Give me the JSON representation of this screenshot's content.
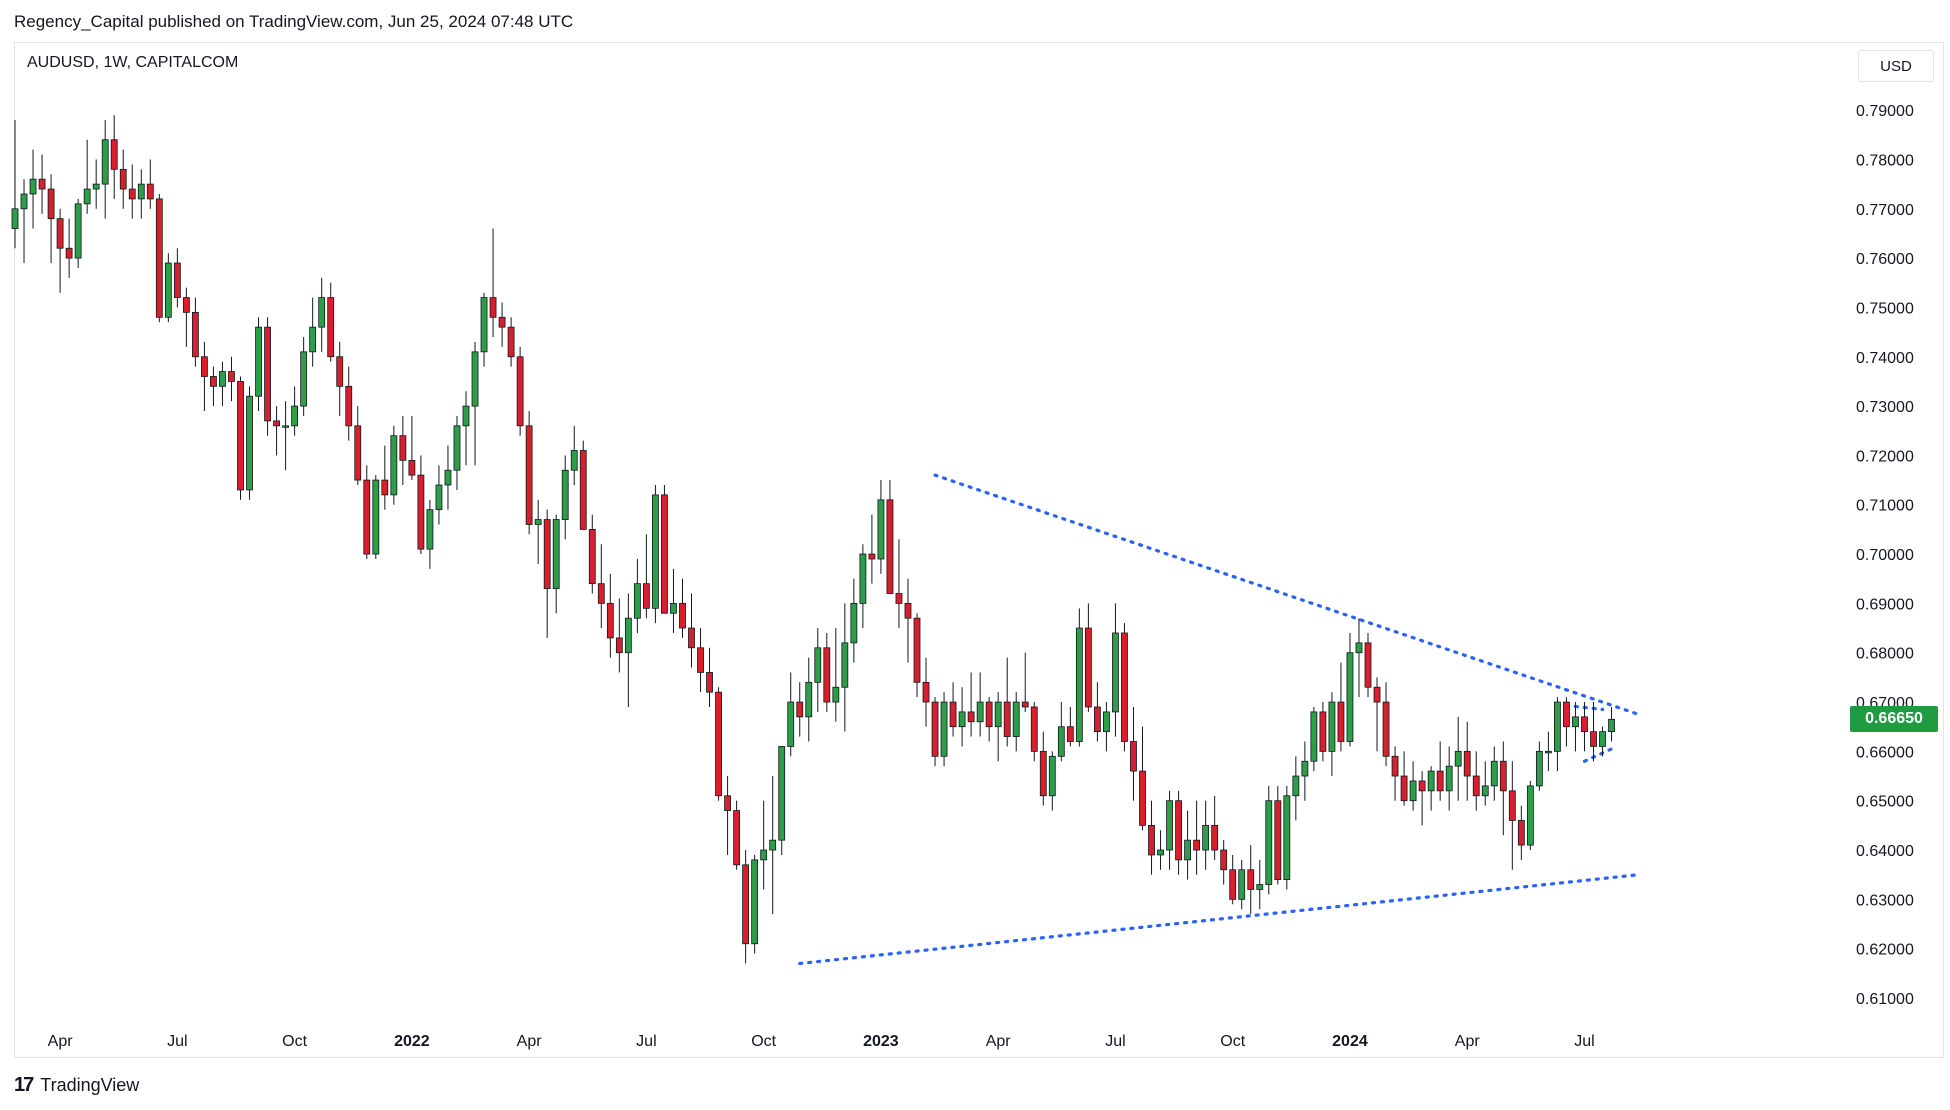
{
  "header": {
    "published": "Regency_Capital published on TradingView.com, Jun 25, 2024 07:48 UTC"
  },
  "symbol_label": "AUDUSD, 1W, CAPITALCOM",
  "currency_button": "USD",
  "footer": {
    "logo_mark": "17",
    "brand": "TradingView"
  },
  "colors": {
    "up": "#2e9d47",
    "down": "#d7202c",
    "trendline": "#2962ff",
    "price_tag": "#1e9c3f"
  },
  "chart_data": {
    "type": "candlestick",
    "title": "AUDUSD, 1W, CAPITALCOM",
    "ylim": [
      0.6025,
      0.7955
    ],
    "y_ticks": [
      "0.79000",
      "0.78000",
      "0.77000",
      "0.76000",
      "0.75000",
      "0.74000",
      "0.73000",
      "0.72000",
      "0.71000",
      "0.70000",
      "0.69000",
      "0.68000",
      "0.67000",
      "0.66000",
      "0.65000",
      "0.64000",
      "0.63000",
      "0.62000",
      "0.61000"
    ],
    "x_labels": [
      {
        "label": "Apr",
        "week": 5,
        "bold": false
      },
      {
        "label": "Jul",
        "week": 18,
        "bold": false
      },
      {
        "label": "Oct",
        "week": 31,
        "bold": false
      },
      {
        "label": "2022",
        "week": 44,
        "bold": true
      },
      {
        "label": "Apr",
        "week": 57,
        "bold": false
      },
      {
        "label": "Jul",
        "week": 70,
        "bold": false
      },
      {
        "label": "Oct",
        "week": 83,
        "bold": false
      },
      {
        "label": "2023",
        "week": 96,
        "bold": true
      },
      {
        "label": "Apr",
        "week": 109,
        "bold": false
      },
      {
        "label": "Jul",
        "week": 122,
        "bold": false
      },
      {
        "label": "Oct",
        "week": 135,
        "bold": false
      },
      {
        "label": "2024",
        "week": 148,
        "bold": true
      },
      {
        "label": "Apr",
        "week": 161,
        "bold": false
      },
      {
        "label": "Jul",
        "week": 174,
        "bold": false
      }
    ],
    "last_price": "0.66650",
    "ohlc": [
      [
        0.766,
        0.788,
        0.762,
        0.77
      ],
      [
        0.77,
        0.776,
        0.759,
        0.773
      ],
      [
        0.773,
        0.782,
        0.766,
        0.776
      ],
      [
        0.776,
        0.781,
        0.769,
        0.774
      ],
      [
        0.774,
        0.777,
        0.759,
        0.768
      ],
      [
        0.768,
        0.77,
        0.753,
        0.762
      ],
      [
        0.762,
        0.768,
        0.756,
        0.76
      ],
      [
        0.76,
        0.772,
        0.758,
        0.771
      ],
      [
        0.771,
        0.784,
        0.769,
        0.774
      ],
      [
        0.774,
        0.78,
        0.77,
        0.775
      ],
      [
        0.775,
        0.788,
        0.768,
        0.784
      ],
      [
        0.784,
        0.789,
        0.772,
        0.778
      ],
      [
        0.778,
        0.782,
        0.77,
        0.774
      ],
      [
        0.774,
        0.779,
        0.768,
        0.772
      ],
      [
        0.772,
        0.778,
        0.768,
        0.775
      ],
      [
        0.775,
        0.78,
        0.77,
        0.772
      ],
      [
        0.772,
        0.773,
        0.747,
        0.748
      ],
      [
        0.748,
        0.761,
        0.747,
        0.759
      ],
      [
        0.759,
        0.762,
        0.75,
        0.752
      ],
      [
        0.752,
        0.754,
        0.742,
        0.749
      ],
      [
        0.749,
        0.752,
        0.738,
        0.74
      ],
      [
        0.74,
        0.743,
        0.729,
        0.736
      ],
      [
        0.736,
        0.738,
        0.73,
        0.734
      ],
      [
        0.734,
        0.739,
        0.73,
        0.737
      ],
      [
        0.737,
        0.74,
        0.731,
        0.735
      ],
      [
        0.735,
        0.736,
        0.711,
        0.713
      ],
      [
        0.713,
        0.734,
        0.711,
        0.732
      ],
      [
        0.732,
        0.748,
        0.729,
        0.746
      ],
      [
        0.746,
        0.748,
        0.724,
        0.727
      ],
      [
        0.727,
        0.73,
        0.72,
        0.726
      ],
      [
        0.726,
        0.731,
        0.717,
        0.726
      ],
      [
        0.726,
        0.734,
        0.724,
        0.73
      ],
      [
        0.73,
        0.744,
        0.728,
        0.741
      ],
      [
        0.741,
        0.752,
        0.738,
        0.746
      ],
      [
        0.746,
        0.756,
        0.741,
        0.752
      ],
      [
        0.752,
        0.755,
        0.739,
        0.74
      ],
      [
        0.74,
        0.743,
        0.728,
        0.734
      ],
      [
        0.734,
        0.738,
        0.723,
        0.726
      ],
      [
        0.726,
        0.73,
        0.714,
        0.715
      ],
      [
        0.715,
        0.718,
        0.699,
        0.7
      ],
      [
        0.7,
        0.716,
        0.699,
        0.715
      ],
      [
        0.715,
        0.722,
        0.709,
        0.712
      ],
      [
        0.712,
        0.726,
        0.71,
        0.724
      ],
      [
        0.724,
        0.728,
        0.714,
        0.719
      ],
      [
        0.719,
        0.728,
        0.715,
        0.716
      ],
      [
        0.716,
        0.72,
        0.7,
        0.701
      ],
      [
        0.701,
        0.711,
        0.697,
        0.709
      ],
      [
        0.709,
        0.718,
        0.706,
        0.714
      ],
      [
        0.714,
        0.722,
        0.709,
        0.717
      ],
      [
        0.717,
        0.728,
        0.713,
        0.726
      ],
      [
        0.726,
        0.733,
        0.718,
        0.73
      ],
      [
        0.73,
        0.743,
        0.718,
        0.741
      ],
      [
        0.741,
        0.753,
        0.738,
        0.752
      ],
      [
        0.752,
        0.766,
        0.744,
        0.748
      ],
      [
        0.748,
        0.751,
        0.742,
        0.746
      ],
      [
        0.746,
        0.748,
        0.738,
        0.74
      ],
      [
        0.74,
        0.742,
        0.724,
        0.726
      ],
      [
        0.726,
        0.729,
        0.704,
        0.706
      ],
      [
        0.706,
        0.711,
        0.698,
        0.707
      ],
      [
        0.707,
        0.709,
        0.683,
        0.693
      ],
      [
        0.693,
        0.708,
        0.688,
        0.707
      ],
      [
        0.707,
        0.72,
        0.703,
        0.717
      ],
      [
        0.717,
        0.726,
        0.714,
        0.721
      ],
      [
        0.721,
        0.723,
        0.705,
        0.705
      ],
      [
        0.705,
        0.708,
        0.692,
        0.694
      ],
      [
        0.694,
        0.702,
        0.685,
        0.69
      ],
      [
        0.69,
        0.696,
        0.679,
        0.683
      ],
      [
        0.683,
        0.691,
        0.676,
        0.68
      ],
      [
        0.68,
        0.692,
        0.669,
        0.687
      ],
      [
        0.687,
        0.699,
        0.684,
        0.694
      ],
      [
        0.694,
        0.704,
        0.687,
        0.689
      ],
      [
        0.689,
        0.714,
        0.686,
        0.712
      ],
      [
        0.712,
        0.714,
        0.688,
        0.688
      ],
      [
        0.688,
        0.697,
        0.684,
        0.69
      ],
      [
        0.69,
        0.695,
        0.683,
        0.685
      ],
      [
        0.685,
        0.692,
        0.677,
        0.681
      ],
      [
        0.681,
        0.685,
        0.672,
        0.676
      ],
      [
        0.676,
        0.681,
        0.669,
        0.672
      ],
      [
        0.672,
        0.673,
        0.65,
        0.651
      ],
      [
        0.651,
        0.655,
        0.639,
        0.648
      ],
      [
        0.648,
        0.65,
        0.636,
        0.637
      ],
      [
        0.637,
        0.64,
        0.617,
        0.621
      ],
      [
        0.621,
        0.639,
        0.619,
        0.638
      ],
      [
        0.638,
        0.65,
        0.632,
        0.64
      ],
      [
        0.64,
        0.655,
        0.627,
        0.642
      ],
      [
        0.642,
        0.661,
        0.639,
        0.661
      ],
      [
        0.661,
        0.676,
        0.659,
        0.67
      ],
      [
        0.67,
        0.674,
        0.663,
        0.667
      ],
      [
        0.667,
        0.679,
        0.662,
        0.674
      ],
      [
        0.674,
        0.685,
        0.668,
        0.681
      ],
      [
        0.681,
        0.684,
        0.668,
        0.67
      ],
      [
        0.67,
        0.685,
        0.666,
        0.673
      ],
      [
        0.673,
        0.69,
        0.664,
        0.682
      ],
      [
        0.682,
        0.695,
        0.678,
        0.69
      ],
      [
        0.69,
        0.702,
        0.685,
        0.7
      ],
      [
        0.7,
        0.708,
        0.694,
        0.699
      ],
      [
        0.699,
        0.715,
        0.696,
        0.711
      ],
      [
        0.711,
        0.715,
        0.692,
        0.692
      ],
      [
        0.692,
        0.703,
        0.685,
        0.69
      ],
      [
        0.69,
        0.695,
        0.678,
        0.687
      ],
      [
        0.687,
        0.688,
        0.671,
        0.674
      ],
      [
        0.674,
        0.679,
        0.665,
        0.67
      ],
      [
        0.67,
        0.671,
        0.657,
        0.659
      ],
      [
        0.659,
        0.672,
        0.657,
        0.67
      ],
      [
        0.67,
        0.674,
        0.663,
        0.665
      ],
      [
        0.665,
        0.673,
        0.661,
        0.668
      ],
      [
        0.668,
        0.676,
        0.663,
        0.666
      ],
      [
        0.666,
        0.676,
        0.663,
        0.67
      ],
      [
        0.67,
        0.671,
        0.662,
        0.665
      ],
      [
        0.665,
        0.672,
        0.658,
        0.67
      ],
      [
        0.67,
        0.679,
        0.661,
        0.663
      ],
      [
        0.663,
        0.672,
        0.66,
        0.67
      ],
      [
        0.67,
        0.68,
        0.668,
        0.669
      ],
      [
        0.669,
        0.67,
        0.658,
        0.66
      ],
      [
        0.66,
        0.664,
        0.649,
        0.651
      ],
      [
        0.651,
        0.66,
        0.648,
        0.659
      ],
      [
        0.659,
        0.67,
        0.658,
        0.665
      ],
      [
        0.665,
        0.669,
        0.661,
        0.662
      ],
      [
        0.662,
        0.689,
        0.661,
        0.685
      ],
      [
        0.685,
        0.69,
        0.668,
        0.669
      ],
      [
        0.669,
        0.674,
        0.662,
        0.664
      ],
      [
        0.664,
        0.67,
        0.66,
        0.668
      ],
      [
        0.668,
        0.69,
        0.663,
        0.684
      ],
      [
        0.684,
        0.686,
        0.66,
        0.662
      ],
      [
        0.662,
        0.669,
        0.65,
        0.656
      ],
      [
        0.656,
        0.665,
        0.644,
        0.645
      ],
      [
        0.645,
        0.65,
        0.635,
        0.639
      ],
      [
        0.639,
        0.644,
        0.636,
        0.64
      ],
      [
        0.64,
        0.652,
        0.636,
        0.65
      ],
      [
        0.65,
        0.652,
        0.635,
        0.638
      ],
      [
        0.638,
        0.648,
        0.634,
        0.642
      ],
      [
        0.642,
        0.65,
        0.635,
        0.64
      ],
      [
        0.64,
        0.65,
        0.636,
        0.645
      ],
      [
        0.645,
        0.651,
        0.638,
        0.64
      ],
      [
        0.64,
        0.642,
        0.633,
        0.636
      ],
      [
        0.636,
        0.639,
        0.629,
        0.63
      ],
      [
        0.63,
        0.638,
        0.628,
        0.636
      ],
      [
        0.636,
        0.641,
        0.627,
        0.632
      ],
      [
        0.632,
        0.638,
        0.628,
        0.633
      ],
      [
        0.633,
        0.653,
        0.631,
        0.65
      ],
      [
        0.65,
        0.653,
        0.633,
        0.634
      ],
      [
        0.634,
        0.653,
        0.632,
        0.651
      ],
      [
        0.651,
        0.659,
        0.646,
        0.655
      ],
      [
        0.655,
        0.662,
        0.65,
        0.658
      ],
      [
        0.658,
        0.669,
        0.656,
        0.668
      ],
      [
        0.668,
        0.67,
        0.658,
        0.66
      ],
      [
        0.66,
        0.672,
        0.655,
        0.67
      ],
      [
        0.67,
        0.678,
        0.66,
        0.662
      ],
      [
        0.662,
        0.684,
        0.661,
        0.68
      ],
      [
        0.68,
        0.687,
        0.671,
        0.682
      ],
      [
        0.682,
        0.684,
        0.671,
        0.673
      ],
      [
        0.673,
        0.675,
        0.66,
        0.67
      ],
      [
        0.67,
        0.674,
        0.657,
        0.659
      ],
      [
        0.659,
        0.661,
        0.65,
        0.655
      ],
      [
        0.655,
        0.66,
        0.649,
        0.65
      ],
      [
        0.65,
        0.658,
        0.648,
        0.654
      ],
      [
        0.654,
        0.656,
        0.645,
        0.652
      ],
      [
        0.652,
        0.657,
        0.648,
        0.656
      ],
      [
        0.656,
        0.662,
        0.65,
        0.652
      ],
      [
        0.652,
        0.661,
        0.648,
        0.657
      ],
      [
        0.657,
        0.667,
        0.65,
        0.66
      ],
      [
        0.66,
        0.666,
        0.65,
        0.655
      ],
      [
        0.655,
        0.66,
        0.648,
        0.651
      ],
      [
        0.651,
        0.658,
        0.649,
        0.653
      ],
      [
        0.653,
        0.661,
        0.65,
        0.658
      ],
      [
        0.658,
        0.662,
        0.643,
        0.652
      ],
      [
        0.652,
        0.658,
        0.636,
        0.646
      ],
      [
        0.646,
        0.649,
        0.638,
        0.641
      ],
      [
        0.641,
        0.654,
        0.64,
        0.653
      ],
      [
        0.653,
        0.662,
        0.652,
        0.66
      ],
      [
        0.66,
        0.664,
        0.656,
        0.66
      ],
      [
        0.66,
        0.671,
        0.656,
        0.67
      ],
      [
        0.67,
        0.671,
        0.661,
        0.665
      ],
      [
        0.665,
        0.67,
        0.66,
        0.667
      ],
      [
        0.667,
        0.67,
        0.66,
        0.664
      ],
      [
        0.664,
        0.67,
        0.658,
        0.661
      ],
      [
        0.661,
        0.665,
        0.659,
        0.664
      ],
      [
        0.664,
        0.669,
        0.662,
        0.6665
      ]
    ],
    "trendlines": [
      {
        "name": "upper",
        "points": [
          {
            "week": 102,
            "price": 0.716
          },
          {
            "week": 180,
            "price": 0.6675
          }
        ]
      },
      {
        "name": "lower",
        "points": [
          {
            "week": 87,
            "price": 0.617
          },
          {
            "week": 180,
            "price": 0.635
          }
        ]
      },
      {
        "name": "inner-top",
        "points": [
          {
            "week": 171,
            "price": 0.6695
          },
          {
            "week": 176,
            "price": 0.6685
          }
        ]
      },
      {
        "name": "inner-bottom",
        "points": [
          {
            "week": 174,
            "price": 0.658
          },
          {
            "week": 177,
            "price": 0.6605
          }
        ]
      }
    ]
  }
}
